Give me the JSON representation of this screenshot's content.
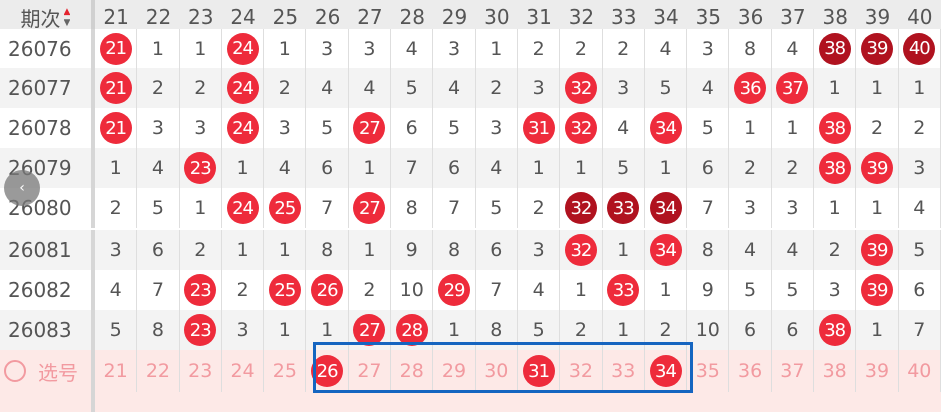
{
  "header": {
    "period_label": "期次",
    "sort_icon": "sort-up-down-icon",
    "columns": [
      "21",
      "22",
      "23",
      "24",
      "25",
      "26",
      "27",
      "28",
      "29",
      "30",
      "31",
      "32",
      "33",
      "34",
      "35",
      "36",
      "37",
      "38",
      "39",
      "40"
    ]
  },
  "colors": {
    "ball": "#ee2b3b",
    "ball_dark": "#b0121f",
    "highlight_box": "#1565c0",
    "select_row_bg": "#fde9e7"
  },
  "rows": [
    {
      "period": "26076",
      "cells": [
        {
          "t": "21",
          "s": "red"
        },
        "1",
        "1",
        {
          "t": "24",
          "s": "red"
        },
        "1",
        "3",
        "3",
        "4",
        "3",
        "1",
        "2",
        "2",
        "2",
        "4",
        "3",
        "8",
        "4",
        {
          "t": "38",
          "s": "dark"
        },
        {
          "t": "39",
          "s": "dark"
        },
        {
          "t": "40",
          "s": "dark"
        }
      ]
    },
    {
      "period": "26077",
      "cells": [
        {
          "t": "21",
          "s": "red"
        },
        "2",
        "2",
        {
          "t": "24",
          "s": "red"
        },
        "2",
        "4",
        "4",
        "5",
        "4",
        "2",
        "3",
        {
          "t": "32",
          "s": "red"
        },
        "3",
        "5",
        "4",
        {
          "t": "36",
          "s": "red"
        },
        {
          "t": "37",
          "s": "red"
        },
        "1",
        "1",
        "1"
      ]
    },
    {
      "period": "26078",
      "cells": [
        {
          "t": "21",
          "s": "red"
        },
        "3",
        "3",
        {
          "t": "24",
          "s": "red"
        },
        "3",
        "5",
        {
          "t": "27",
          "s": "red"
        },
        "6",
        "5",
        "3",
        {
          "t": "31",
          "s": "red"
        },
        {
          "t": "32",
          "s": "red"
        },
        "4",
        {
          "t": "34",
          "s": "red"
        },
        "5",
        "1",
        "1",
        {
          "t": "38",
          "s": "red"
        },
        "2",
        "2"
      ]
    },
    {
      "period": "26079",
      "cells": [
        "1",
        "4",
        {
          "t": "23",
          "s": "red"
        },
        "1",
        "4",
        "6",
        "1",
        "7",
        "6",
        "4",
        "1",
        "1",
        "5",
        "1",
        "6",
        "2",
        "2",
        {
          "t": "38",
          "s": "red"
        },
        {
          "t": "39",
          "s": "red"
        },
        "3"
      ]
    },
    {
      "period": "26080",
      "cells": [
        "2",
        "5",
        "1",
        {
          "t": "24",
          "s": "red"
        },
        {
          "t": "25",
          "s": "red"
        },
        "7",
        {
          "t": "27",
          "s": "red"
        },
        "8",
        "7",
        "5",
        "2",
        {
          "t": "32",
          "s": "dark"
        },
        {
          "t": "33",
          "s": "dark"
        },
        {
          "t": "34",
          "s": "dark"
        },
        "7",
        "3",
        "3",
        "1",
        "1",
        "4"
      ]
    },
    {
      "period": "26081",
      "cells": [
        "3",
        "6",
        "2",
        "1",
        "1",
        "8",
        "1",
        "9",
        "8",
        "6",
        "3",
        {
          "t": "32",
          "s": "red"
        },
        "1",
        {
          "t": "34",
          "s": "red"
        },
        "8",
        "4",
        "4",
        "2",
        {
          "t": "39",
          "s": "red"
        },
        "5"
      ]
    },
    {
      "period": "26082",
      "cells": [
        "4",
        "7",
        {
          "t": "23",
          "s": "red"
        },
        "2",
        {
          "t": "25",
          "s": "red"
        },
        {
          "t": "26",
          "s": "red"
        },
        "2",
        "10",
        {
          "t": "29",
          "s": "red"
        },
        "7",
        "4",
        "1",
        {
          "t": "33",
          "s": "red"
        },
        "1",
        "9",
        "5",
        "5",
        "3",
        {
          "t": "39",
          "s": "red"
        },
        "6"
      ]
    },
    {
      "period": "26083",
      "cells": [
        "5",
        "8",
        {
          "t": "23",
          "s": "red"
        },
        "3",
        "1",
        "1",
        {
          "t": "27",
          "s": "red"
        },
        {
          "t": "28",
          "s": "red"
        },
        "1",
        "8",
        "5",
        "2",
        "1",
        "2",
        "10",
        "6",
        "6",
        {
          "t": "38",
          "s": "red"
        },
        "1",
        "7"
      ]
    }
  ],
  "select_row": {
    "label": "选号",
    "numbers": [
      "21",
      "22",
      "23",
      "24",
      "25",
      "26",
      "27",
      "28",
      "29",
      "30",
      "31",
      "32",
      "33",
      "34",
      "35",
      "36",
      "37",
      "38",
      "39",
      "40"
    ],
    "selected": [
      "26",
      "31",
      "34"
    ]
  },
  "back_button": {
    "icon": "chevron-left-icon",
    "glyph": "‹"
  }
}
